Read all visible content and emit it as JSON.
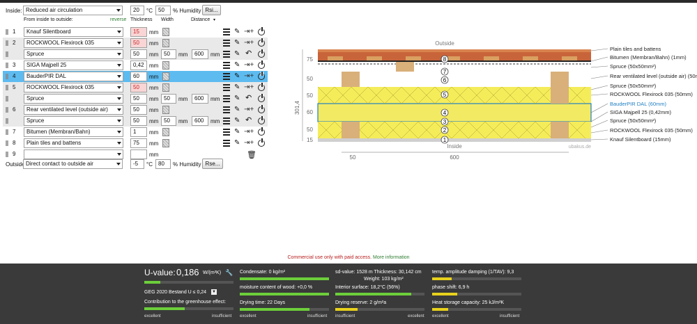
{
  "inside": {
    "label": "Inside:",
    "climate": "Reduced air circulation",
    "temp": "20",
    "temp_unit": "°C",
    "humidity": "50",
    "humidity_unit": "% Humidity",
    "rsi_button": "Rsi..."
  },
  "columns": {
    "from_to": "From inside to outside:",
    "reverse": "reverse",
    "thickness": "Thickness",
    "width": "Width",
    "distance": "Distance"
  },
  "layers": [
    {
      "num": "1",
      "material": "Knauf Silentboard",
      "thickness": "15",
      "unit": "mm",
      "pink": true
    },
    {
      "num": "2",
      "material": "ROCKWOOL Flexirock 035",
      "thickness": "50",
      "unit": "mm",
      "pink": true
    },
    {
      "num": "",
      "material": "Spruce",
      "thickness": "50",
      "unit": "mm",
      "width": "50",
      "width_unit": "mm",
      "distance": "600",
      "distance_unit": "mm"
    },
    {
      "num": "3",
      "material": "SIGA Majpell 25",
      "thickness": "0,42",
      "unit": "mm"
    },
    {
      "num": "4",
      "material": "BauderPIR DAL",
      "thickness": "60",
      "unit": "mm",
      "selected": true
    },
    {
      "num": "5",
      "material": "ROCKWOOL Flexirock 035",
      "thickness": "50",
      "unit": "mm",
      "pink": true
    },
    {
      "num": "",
      "material": "Spruce",
      "thickness": "50",
      "unit": "mm",
      "width": "50",
      "width_unit": "mm",
      "distance": "600",
      "distance_unit": "mm"
    },
    {
      "num": "6",
      "material": "Rear ventilated level (outside air)",
      "thickness": "50",
      "unit": "mm"
    },
    {
      "num": "",
      "material": "Spruce",
      "thickness": "50",
      "unit": "mm",
      "width": "50",
      "width_unit": "mm",
      "distance": "600",
      "distance_unit": "mm"
    },
    {
      "num": "7",
      "material": "Bitumen (Membran/Bahn)",
      "thickness": "1",
      "unit": "mm"
    },
    {
      "num": "8",
      "material": "Plain tiles and battens",
      "thickness": "75",
      "unit": "mm"
    },
    {
      "num": "9",
      "material": "",
      "thickness": "",
      "unit": "mm"
    }
  ],
  "outside": {
    "label": "Outside",
    "climate": "Direct contact to outside air",
    "temp": "-5",
    "temp_unit": "°C",
    "humidity": "80",
    "humidity_unit": "% Humidity",
    "rse_button": "Rse..."
  },
  "diagram": {
    "top_label": "Outside",
    "bottom_label": "Inside",
    "watermark": "ubakus.de",
    "dims_left": [
      "75",
      "50",
      "50",
      "60",
      "50",
      "15"
    ],
    "total_dim": "301,4",
    "dims_bottom": [
      "50",
      "600"
    ],
    "markers": [
      "8",
      "7",
      "6",
      "5",
      "4",
      "3",
      "2",
      "1"
    ],
    "legend": [
      "Plain tiles and battens",
      "Bitumen (Membran/Bahn) (1mm)",
      "Spruce (50x50mm²)",
      "Rear ventilated level (outside air) (50mm)",
      "Spruce (50x50mm²)",
      "ROCKWOOL Flexirock 035 (50mm)",
      "BauderPIR DAL (60mm)",
      "SIGA Majpell 25 (0,42mm)",
      "Spruce (50x50mm²)",
      "ROCKWOOL Flexirock 035 (50mm)",
      "Knauf Silentboard (15mm)"
    ]
  },
  "notice": {
    "text": "Commercial use only with paid access.",
    "link": "More information"
  },
  "results": {
    "uvalue_label": "U-value:",
    "uvalue": "0,186",
    "uvalue_unit": "W/(m²K)",
    "uvalue_fill": 0.18,
    "geg": "GEG 2020 Bestand U ≤ 0,24",
    "greenhouse": "Contribution to the greenhouse effect:",
    "greenhouse_fill": 0.45,
    "condensate": "Condensate: 0 kg/m²",
    "condensate_fill": 1.0,
    "moisture": "moisture content of wood: +0,0 %",
    "moisture_fill": 1.0,
    "drying": "Drying time: 22 Days",
    "drying_fill": 0.78,
    "sd": "sd-value: 1528 m  Thickness: 30,142 cm",
    "weight": "Weight: 103 kg/m²",
    "interior": "Interior surface: 18,2°C (56%)",
    "interior_fill": 0.85,
    "reserve": "Drying reserve: 2 g/m²a",
    "reserve_fill": 0.25,
    "temp_amp": "temp. amplitude damping (1/TAV): 9,3",
    "temp_amp_fill": 0.22,
    "phase": "phase shift: 6,9 h",
    "phase_fill": 0.28,
    "heatstore": "Heat storage capacity: 25 kJ/m²K",
    "heatstore_fill": 0.18,
    "excellent": "excellent",
    "insufficient": "insufficient"
  }
}
